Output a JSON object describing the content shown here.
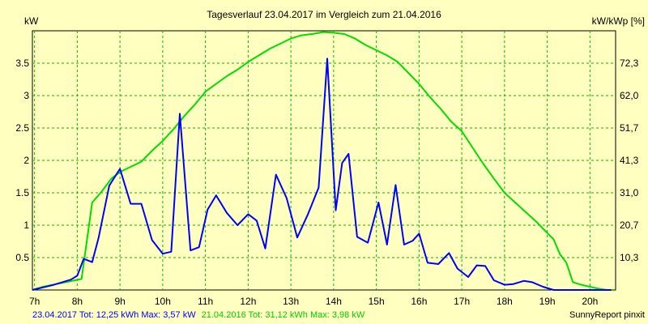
{
  "chart_data": {
    "type": "line",
    "title": "Tagesverlauf 23.04.2017 im Vergleich zum 21.04.2016",
    "ylabel_left": "kW",
    "ylabel_right": "kW/kWp [%]",
    "x_ticks": [
      "7h",
      "8h",
      "9h",
      "10h",
      "11h",
      "12h",
      "13h",
      "14h",
      "15h",
      "16h",
      "17h",
      "18h",
      "19h",
      "20h"
    ],
    "xlim": [
      6.95,
      20.6
    ],
    "ylim": [
      0,
      4.0
    ],
    "y_ticks_left": [
      "0.5",
      "1",
      "1.5",
      "2",
      "2.5",
      "3",
      "3.5"
    ],
    "y_ticks_right": [
      "10,3",
      "20,7",
      "31,0",
      "41,3",
      "51,7",
      "62,0",
      "72,3"
    ],
    "grid": true,
    "series": [
      {
        "name": "23.04.2017",
        "color": "#0000ff",
        "x": [
          6.95,
          7.2,
          7.45,
          7.65,
          7.85,
          8.0,
          8.15,
          8.35,
          8.5,
          8.75,
          9.0,
          9.25,
          9.5,
          9.75,
          10.0,
          10.2,
          10.4,
          10.65,
          10.85,
          11.05,
          11.25,
          11.5,
          11.75,
          12.0,
          12.2,
          12.4,
          12.65,
          12.9,
          13.15,
          13.4,
          13.65,
          13.85,
          14.05,
          14.2,
          14.35,
          14.55,
          14.8,
          15.05,
          15.25,
          15.45,
          15.65,
          15.85,
          16.0,
          16.2,
          16.45,
          16.7,
          16.9,
          17.15,
          17.35,
          17.55,
          17.75,
          18.0,
          18.2,
          18.45,
          18.65,
          18.9,
          19.15,
          19.4,
          19.65,
          19.85,
          20.05,
          20.2,
          20.35,
          20.5
        ],
        "values": [
          0.0,
          0.04,
          0.08,
          0.12,
          0.16,
          0.22,
          0.48,
          0.43,
          0.81,
          1.61,
          1.87,
          1.33,
          1.33,
          0.77,
          0.56,
          0.59,
          2.72,
          0.61,
          0.66,
          1.24,
          1.46,
          1.19,
          1.0,
          1.17,
          1.07,
          0.64,
          1.78,
          1.42,
          0.81,
          1.17,
          1.58,
          3.57,
          1.23,
          1.96,
          2.1,
          0.82,
          0.73,
          1.35,
          0.7,
          1.62,
          0.7,
          0.76,
          0.87,
          0.42,
          0.4,
          0.57,
          0.33,
          0.2,
          0.38,
          0.37,
          0.15,
          0.08,
          0.09,
          0.14,
          0.12,
          0.05,
          0.0,
          0.0,
          0.0,
          0.0,
          0.0,
          0.0,
          0.0,
          0.0
        ]
      },
      {
        "name": "21.04.2016",
        "color": "#00dd00",
        "x": [
          6.95,
          7.2,
          7.5,
          7.8,
          8.1,
          8.35,
          8.55,
          8.8,
          9.0,
          9.25,
          9.5,
          9.75,
          10.0,
          10.25,
          10.5,
          10.75,
          11.0,
          11.25,
          11.5,
          11.75,
          12.0,
          12.25,
          12.5,
          12.75,
          13.0,
          13.25,
          13.5,
          13.75,
          14.0,
          14.25,
          14.5,
          14.75,
          15.0,
          15.25,
          15.5,
          15.75,
          16.0,
          16.25,
          16.5,
          16.75,
          17.0,
          17.25,
          17.5,
          17.75,
          18.0,
          18.25,
          18.5,
          18.75,
          19.0,
          19.15,
          19.3,
          19.45,
          19.6,
          19.8,
          20.0,
          20.2,
          20.4,
          20.55
        ],
        "values": [
          0.0,
          0.05,
          0.09,
          0.13,
          0.17,
          1.35,
          1.5,
          1.72,
          1.82,
          1.9,
          1.98,
          2.15,
          2.3,
          2.48,
          2.68,
          2.86,
          3.06,
          3.18,
          3.3,
          3.4,
          3.52,
          3.62,
          3.72,
          3.8,
          3.88,
          3.93,
          3.95,
          3.98,
          3.97,
          3.95,
          3.88,
          3.78,
          3.7,
          3.62,
          3.52,
          3.35,
          3.18,
          2.98,
          2.8,
          2.6,
          2.45,
          2.2,
          1.95,
          1.72,
          1.5,
          1.35,
          1.2,
          1.05,
          0.88,
          0.78,
          0.55,
          0.42,
          0.12,
          0.08,
          0.05,
          0.02,
          0.0,
          0.0
        ]
      }
    ]
  },
  "footer": {
    "series1_text": "23.04.2017 Tot: 12,25 kWh Max: 3,57 kW",
    "series2_text": "21.04.2016 Tot: 31,12 kWh Max: 3,98 kW",
    "credit": "SunnyReport pinxit"
  }
}
